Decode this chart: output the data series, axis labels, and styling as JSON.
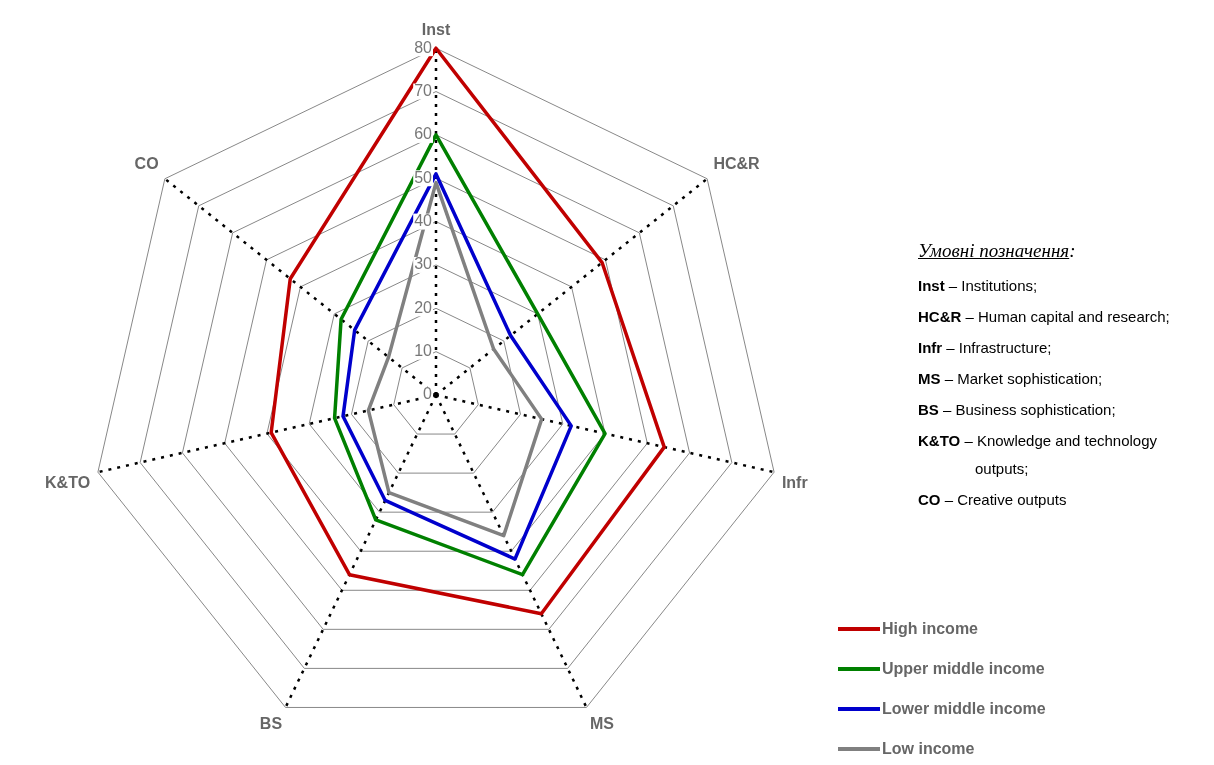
{
  "chart_data": {
    "type": "radar",
    "categories": [
      "Inst",
      "HC&R",
      "Infr",
      "MS",
      "BS",
      "K&TO",
      "CO"
    ],
    "series": [
      {
        "name": "High income",
        "color": "#c00000",
        "values": [
          80,
          49,
          54,
          56,
          46,
          39,
          43
        ]
      },
      {
        "name": "Upper middle income",
        "color": "#008000",
        "values": [
          60,
          30,
          40,
          46,
          32,
          24,
          28
        ]
      },
      {
        "name": "Lower middle income",
        "color": "#0000cc",
        "values": [
          51,
          22,
          32,
          42,
          27,
          22,
          24
        ]
      },
      {
        "name": "Low income",
        "color": "#808080",
        "values": [
          49,
          17,
          25,
          36,
          25,
          16,
          14
        ]
      }
    ],
    "ylim": [
      0,
      80
    ],
    "yticks": [
      0,
      10,
      20,
      30,
      40,
      50,
      60,
      70,
      80
    ],
    "grid": true,
    "legend": "bottom right",
    "marker": "none",
    "line_style": "solid",
    "annotations": [
      "Умовні позначення:",
      "Inst –  Institutions;",
      "HC&R –  Human capital and research;",
      "Infr – Infrastructure;",
      "MS – Market sophistication;",
      "BS – Business sophistication;",
      "K&TO – Knowledge and technology outputs;",
      "CO – Creative outputs"
    ]
  }
}
